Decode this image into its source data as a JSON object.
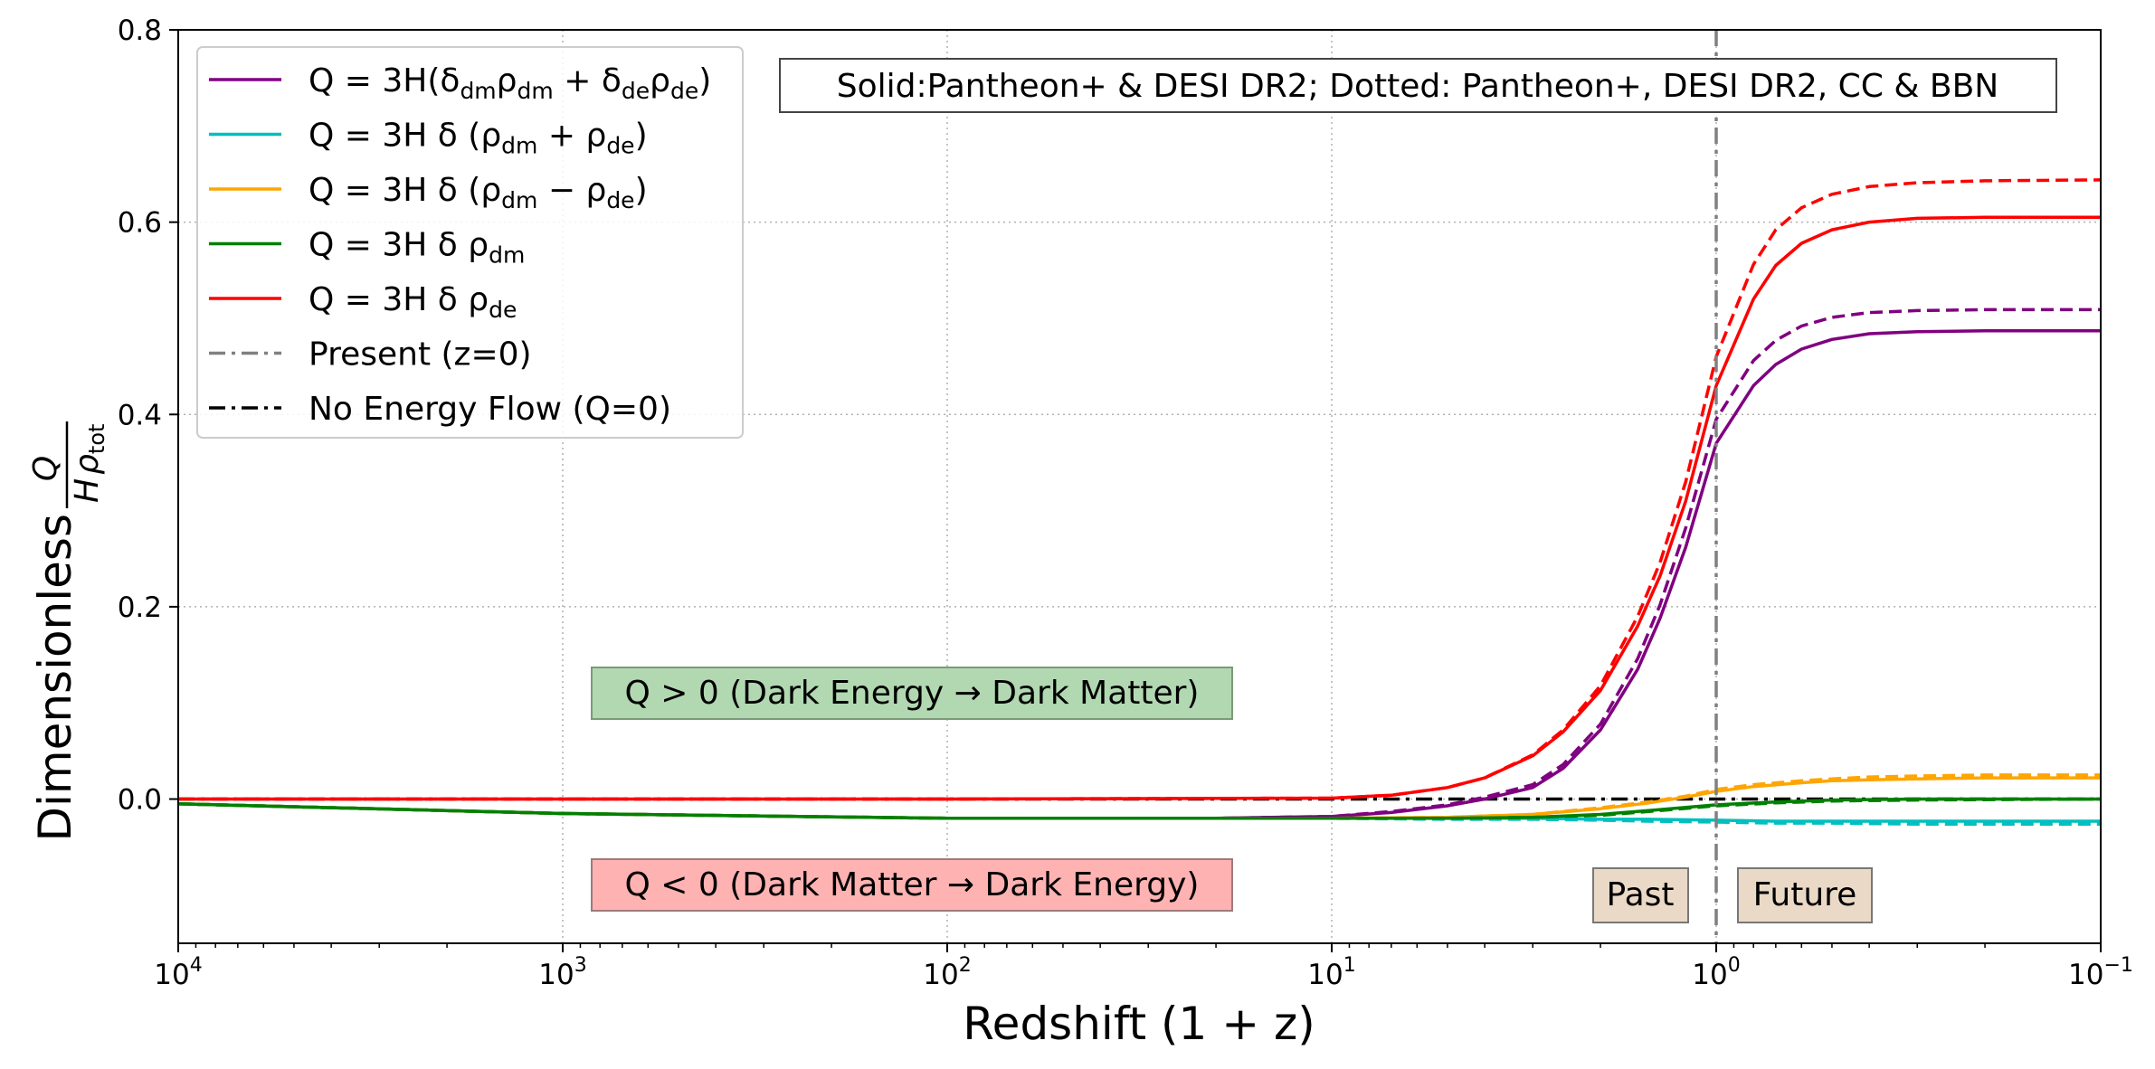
{
  "chart_data": {
    "type": "line",
    "title": "",
    "xlabel": "Redshift (1 + z)",
    "ylabel": "Dimensionless Q / (H ρtot)",
    "ylabel_main": "Dimensionless",
    "ylabel_frac_num": "Q",
    "ylabel_frac_den_h": "H",
    "ylabel_frac_den_rho": "ρ",
    "ylabel_frac_den_sub": "tot",
    "x_scale": "log",
    "x_reversed": true,
    "xlim": [
      10000,
      0.1
    ],
    "ylim": [
      -0.15,
      0.8
    ],
    "grid": true,
    "x_ticks": [
      {
        "value": 10000,
        "base": "10",
        "exp": "4"
      },
      {
        "value": 1000,
        "base": "10",
        "exp": "3"
      },
      {
        "value": 100,
        "base": "10",
        "exp": "2"
      },
      {
        "value": 10,
        "base": "10",
        "exp": "1"
      },
      {
        "value": 1,
        "base": "10",
        "exp": "0"
      },
      {
        "value": 0.1,
        "base": "10",
        "exp": "−1"
      }
    ],
    "y_ticks": [
      {
        "value": 0.0,
        "label": "0.0"
      },
      {
        "value": 0.2,
        "label": "0.2"
      },
      {
        "value": 0.4,
        "label": "0.4"
      },
      {
        "value": 0.6,
        "label": "0.6"
      },
      {
        "value": 0.8,
        "label": "0.8"
      }
    ],
    "legend_position": "upper-left",
    "series": [
      {
        "name": "Q = 3H(δdm ρdm + δde ρde)",
        "color": "#800080",
        "linestyle": "solid",
        "x": [
          10000,
          1000,
          100,
          20,
          10,
          7,
          5,
          4,
          3,
          2.5,
          2,
          1.6,
          1.4,
          1.2,
          1,
          0.8,
          0.7,
          0.6,
          0.5,
          0.4,
          0.3,
          0.2,
          0.1
        ],
        "values": [
          -0.005,
          -0.015,
          -0.02,
          -0.02,
          -0.018,
          -0.014,
          -0.007,
          0.0,
          0.012,
          0.032,
          0.072,
          0.135,
          0.188,
          0.262,
          0.37,
          0.43,
          0.452,
          0.468,
          0.478,
          0.484,
          0.486,
          0.487,
          0.487
        ]
      },
      {
        "name": "Q = 3H(δdm ρdm + δde ρde) (dotted fit)",
        "color": "#800080",
        "linestyle": "dashed",
        "x": [
          10000,
          1000,
          100,
          20,
          10,
          7,
          5,
          4,
          3,
          2.5,
          2,
          1.6,
          1.4,
          1.2,
          1,
          0.8,
          0.7,
          0.6,
          0.5,
          0.4,
          0.3,
          0.2,
          0.1
        ],
        "values": [
          -0.005,
          -0.015,
          -0.02,
          -0.02,
          -0.018,
          -0.013,
          -0.006,
          0.002,
          0.015,
          0.036,
          0.078,
          0.146,
          0.202,
          0.282,
          0.395,
          0.456,
          0.477,
          0.492,
          0.501,
          0.506,
          0.508,
          0.509,
          0.509
        ]
      },
      {
        "name": "Q = 3H δ (ρdm + ρde)",
        "color": "#00bfbf",
        "linestyle": "solid",
        "x": [
          10000,
          1000,
          100,
          10,
          5,
          3,
          2,
          1.5,
          1,
          0.7,
          0.5,
          0.3,
          0.1
        ],
        "values": [
          -0.005,
          -0.015,
          -0.02,
          -0.02,
          -0.02,
          -0.02,
          -0.021,
          -0.021,
          -0.022,
          -0.023,
          -0.023,
          -0.023,
          -0.023
        ]
      },
      {
        "name": "Q = 3H δ (ρdm + ρde) (dotted fit)",
        "color": "#00bfbf",
        "linestyle": "dashed",
        "x": [
          10000,
          1000,
          100,
          10,
          5,
          3,
          2,
          1.5,
          1,
          0.7,
          0.5,
          0.3,
          0.1
        ],
        "values": [
          -0.005,
          -0.015,
          -0.02,
          -0.02,
          -0.021,
          -0.021,
          -0.022,
          -0.023,
          -0.024,
          -0.025,
          -0.025,
          -0.026,
          -0.026
        ]
      },
      {
        "name": "Q = 3H δ (ρdm − ρde)",
        "color": "#ffa500",
        "linestyle": "solid",
        "x": [
          10000,
          1000,
          100,
          10,
          5,
          3,
          2,
          1.5,
          1.2,
          1,
          0.8,
          0.6,
          0.5,
          0.4,
          0.3,
          0.2,
          0.1
        ],
        "values": [
          -0.005,
          -0.015,
          -0.02,
          -0.02,
          -0.019,
          -0.016,
          -0.01,
          -0.004,
          0.002,
          0.008,
          0.013,
          0.017,
          0.019,
          0.02,
          0.021,
          0.022,
          0.022
        ]
      },
      {
        "name": "Q = 3H δ (ρdm − ρde) (dotted fit)",
        "color": "#ffa500",
        "linestyle": "dashed",
        "x": [
          10000,
          1000,
          100,
          10,
          5,
          3,
          2,
          1.5,
          1.2,
          1,
          0.8,
          0.6,
          0.5,
          0.4,
          0.3,
          0.2,
          0.1
        ],
        "values": [
          -0.005,
          -0.015,
          -0.02,
          -0.02,
          -0.019,
          -0.016,
          -0.009,
          -0.003,
          0.003,
          0.01,
          0.015,
          0.019,
          0.021,
          0.023,
          0.024,
          0.025,
          0.025
        ]
      },
      {
        "name": "Q = 3H δ ρdm",
        "color": "#008000",
        "linestyle": "solid",
        "x": [
          10000,
          1000,
          100,
          10,
          5,
          3,
          2,
          1.5,
          1,
          0.7,
          0.5,
          0.3,
          0.1
        ],
        "values": [
          -0.005,
          -0.015,
          -0.02,
          -0.02,
          -0.02,
          -0.019,
          -0.016,
          -0.012,
          -0.006,
          -0.003,
          -0.001,
          0.0,
          0.0
        ]
      },
      {
        "name": "Q = 3H δ ρdm (dotted fit)",
        "color": "#008000",
        "linestyle": "dashed",
        "x": [
          10000,
          1000,
          100,
          10,
          5,
          3,
          2,
          1.5,
          1,
          0.7,
          0.5,
          0.3,
          0.1
        ],
        "values": [
          -0.005,
          -0.015,
          -0.02,
          -0.02,
          -0.02,
          -0.019,
          -0.017,
          -0.013,
          -0.007,
          -0.004,
          -0.002,
          -0.001,
          0.0
        ]
      },
      {
        "name": "Q = 3H δ ρde",
        "color": "#ff0000",
        "linestyle": "solid",
        "x": [
          10000,
          1000,
          100,
          10,
          7,
          5,
          4,
          3,
          2.5,
          2,
          1.6,
          1.4,
          1.2,
          1,
          0.8,
          0.7,
          0.6,
          0.5,
          0.4,
          0.3,
          0.2,
          0.1
        ],
        "values": [
          0.0,
          0.0,
          0.0,
          0.001,
          0.004,
          0.012,
          0.022,
          0.045,
          0.07,
          0.113,
          0.18,
          0.232,
          0.31,
          0.43,
          0.52,
          0.555,
          0.578,
          0.592,
          0.6,
          0.604,
          0.605,
          0.605
        ]
      },
      {
        "name": "Q = 3H δ ρde (dotted fit)",
        "color": "#ff0000",
        "linestyle": "dashed",
        "x": [
          10000,
          1000,
          100,
          10,
          7,
          5,
          4,
          3,
          2.5,
          2,
          1.6,
          1.4,
          1.2,
          1,
          0.8,
          0.7,
          0.6,
          0.5,
          0.4,
          0.3,
          0.2,
          0.1
        ],
        "values": [
          0.0,
          0.0,
          0.0,
          0.001,
          0.004,
          0.012,
          0.022,
          0.046,
          0.072,
          0.118,
          0.19,
          0.246,
          0.33,
          0.46,
          0.556,
          0.592,
          0.615,
          0.629,
          0.637,
          0.641,
          0.643,
          0.644
        ]
      },
      {
        "name": "No Energy Flow (Q=0)",
        "color": "#000000",
        "linestyle": "dashdot",
        "x": [
          10000,
          0.1
        ],
        "values": [
          0,
          0
        ]
      }
    ],
    "present_line": {
      "x": 1,
      "color": "#808080"
    },
    "legend": [
      {
        "name": "purple",
        "color": "#800080",
        "style": "solid",
        "parts": [
          {
            "t": "Q = 3H(δ",
            "s": ""
          },
          {
            "t": "dm",
            "s": "sub"
          },
          {
            "t": "ρ",
            "s": ""
          },
          {
            "t": "dm",
            "s": "sub"
          },
          {
            "t": " + δ",
            "s": ""
          },
          {
            "t": "de",
            "s": "sub"
          },
          {
            "t": "ρ",
            "s": ""
          },
          {
            "t": "de",
            "s": "sub"
          },
          {
            "t": ")",
            "s": ""
          }
        ]
      },
      {
        "name": "cyan",
        "color": "#00bfbf",
        "style": "solid",
        "parts": [
          {
            "t": "Q = 3H δ (ρ",
            "s": ""
          },
          {
            "t": "dm",
            "s": "sub"
          },
          {
            "t": " + ρ",
            "s": ""
          },
          {
            "t": "de",
            "s": "sub"
          },
          {
            "t": ")",
            "s": ""
          }
        ]
      },
      {
        "name": "orange",
        "color": "#ffa500",
        "style": "solid",
        "parts": [
          {
            "t": "Q = 3H δ (ρ",
            "s": ""
          },
          {
            "t": "dm",
            "s": "sub"
          },
          {
            "t": " − ρ",
            "s": ""
          },
          {
            "t": "de",
            "s": "sub"
          },
          {
            "t": ")",
            "s": ""
          }
        ]
      },
      {
        "name": "green",
        "color": "#008000",
        "style": "solid",
        "parts": [
          {
            "t": "Q = 3H δ ρ",
            "s": ""
          },
          {
            "t": "dm",
            "s": "sub"
          }
        ]
      },
      {
        "name": "red",
        "color": "#ff0000",
        "style": "solid",
        "parts": [
          {
            "t": "Q = 3H δ ρ",
            "s": ""
          },
          {
            "t": "de",
            "s": "sub"
          }
        ]
      },
      {
        "name": "present",
        "color": "#808080",
        "style": "dashdot",
        "parts": [
          {
            "t": "Present (z=0)",
            "s": ""
          }
        ]
      },
      {
        "name": "no-flow",
        "color": "#000000",
        "style": "dashdot",
        "parts": [
          {
            "t": "No Energy Flow (Q=0)",
            "s": ""
          }
        ]
      }
    ],
    "annotations": {
      "dataset_note": "Solid:Pantheon+ & DESI DR2; Dotted: Pantheon+, DESI DR2, CC & BBN",
      "positive_region": "Q > 0 (Dark Energy → Dark Matter)",
      "negative_region": "Q < 0 (Dark Matter → Dark Energy)",
      "past": "Past",
      "future": "Future"
    },
    "colors": {
      "positive_fill": "#b2d8b2",
      "negative_fill": "#ffb2b2",
      "time_fill": "#ead9c6",
      "grid": "#b0b0b0"
    }
  }
}
